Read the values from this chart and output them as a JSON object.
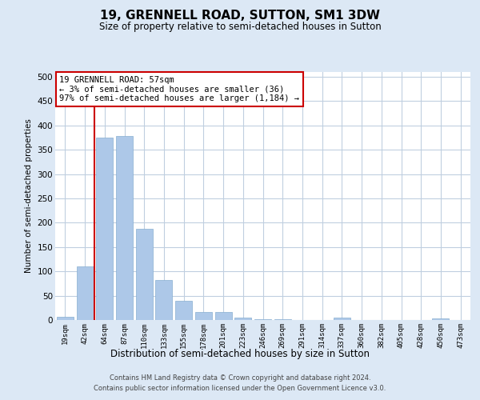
{
  "title1": "19, GRENNELL ROAD, SUTTON, SM1 3DW",
  "title2": "Size of property relative to semi-detached houses in Sutton",
  "xlabel": "Distribution of semi-detached houses by size in Sutton",
  "ylabel": "Number of semi-detached properties",
  "categories": [
    "19sqm",
    "42sqm",
    "64sqm",
    "87sqm",
    "110sqm",
    "133sqm",
    "155sqm",
    "178sqm",
    "201sqm",
    "223sqm",
    "246sqm",
    "269sqm",
    "291sqm",
    "314sqm",
    "337sqm",
    "360sqm",
    "382sqm",
    "405sqm",
    "428sqm",
    "450sqm",
    "473sqm"
  ],
  "values": [
    7,
    110,
    375,
    378,
    187,
    83,
    40,
    16,
    17,
    5,
    2,
    1,
    0,
    0,
    5,
    0,
    0,
    0,
    0,
    4,
    0
  ],
  "bar_color": "#adc8e8",
  "bar_edge_color": "#88aed0",
  "vline_color": "#cc0000",
  "vline_x": 1.5,
  "annotation_text": "19 GRENNELL ROAD: 57sqm\n← 3% of semi-detached houses are smaller (36)\n97% of semi-detached houses are larger (1,184) →",
  "annotation_box_facecolor": "#ffffff",
  "annotation_box_edgecolor": "#cc0000",
  "footer1": "Contains HM Land Registry data © Crown copyright and database right 2024.",
  "footer2": "Contains public sector information licensed under the Open Government Licence v3.0.",
  "fig_bg_color": "#dce8f5",
  "plot_bg_color": "#ffffff",
  "grid_color": "#c0cfe0",
  "ylim": [
    0,
    510
  ],
  "yticks": [
    0,
    50,
    100,
    150,
    200,
    250,
    300,
    350,
    400,
    450,
    500
  ]
}
